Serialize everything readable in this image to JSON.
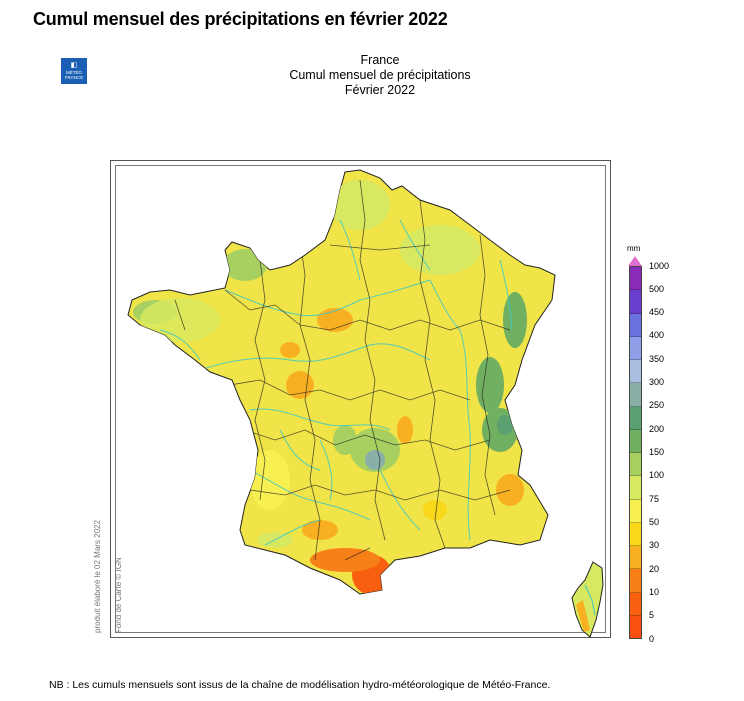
{
  "page": {
    "heading": "Cumul mensuel des précipitations en février 2022",
    "footnote": "NB : Les cumuls mensuels sont issus de la chaîne de modélisation hydro-météorologique de Météo-France."
  },
  "logo": {
    "line1": "MÉTÉO",
    "line2": "FRANCE",
    "color": "#1a5fb4"
  },
  "map": {
    "title_lines": [
      "France",
      "Cumul mensuel de précipitations",
      "Février 2022"
    ],
    "credit_produced": "produit élaboré le 02 Mars 2022",
    "credit_basemap": "Fond de Carte © IGN",
    "river_color": "#3cc8c8",
    "boundary_color": "#222222",
    "dominant_color": "#f0e040"
  },
  "legend": {
    "unit": "mm",
    "classes": [
      {
        "value": "1000",
        "color": "#c030c0"
      },
      {
        "value": "500",
        "color": "#8a2ab8"
      },
      {
        "value": "450",
        "color": "#6a3fd0"
      },
      {
        "value": "400",
        "color": "#6a72e0"
      },
      {
        "value": "350",
        "color": "#8fa0e8"
      },
      {
        "value": "300",
        "color": "#a8bde0"
      },
      {
        "value": "250",
        "color": "#88b0a8"
      },
      {
        "value": "200",
        "color": "#5aa070"
      },
      {
        "value": "150",
        "color": "#70b060"
      },
      {
        "value": "100",
        "color": "#a8d060"
      },
      {
        "value": "75",
        "color": "#d8e860"
      },
      {
        "value": "50",
        "color": "#f8f050"
      },
      {
        "value": "30",
        "color": "#f8d818"
      },
      {
        "value": "20",
        "color": "#f8b020"
      },
      {
        "value": "10",
        "color": "#f88018"
      },
      {
        "value": "5",
        "color": "#f86010"
      },
      {
        "value": "0",
        "color": "#f85010"
      }
    ]
  }
}
